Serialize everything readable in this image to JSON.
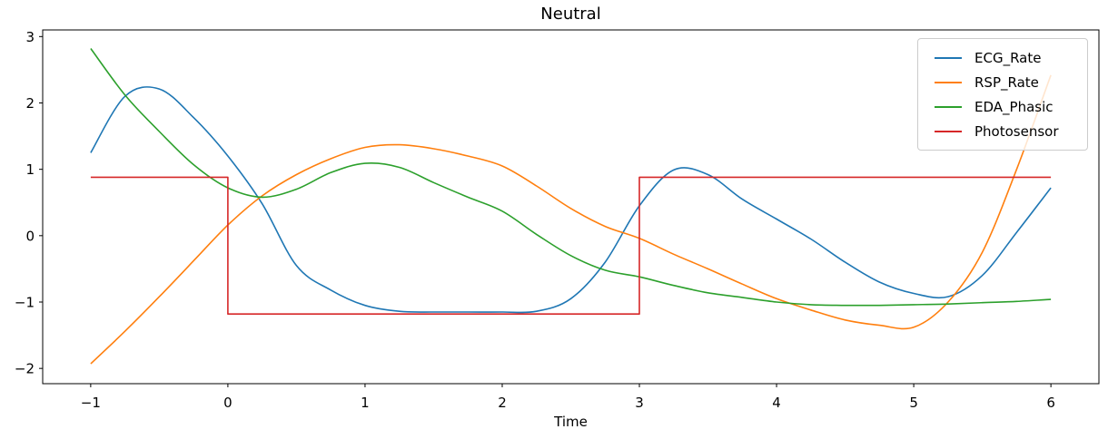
{
  "chart_data": {
    "type": "line",
    "title": "Neutral",
    "xlabel": "Time",
    "ylabel": "",
    "xlim": [
      -1.35,
      6.35
    ],
    "ylim": [
      -2.23,
      3.1
    ],
    "xticks": [
      -1,
      0,
      1,
      2,
      3,
      4,
      5,
      6
    ],
    "yticks": [
      -2,
      -1,
      0,
      1,
      2,
      3
    ],
    "grid": false,
    "legend_position": "upper right",
    "axis_color": "#000000",
    "x": [
      -1,
      -0.75,
      -0.5,
      -0.25,
      0,
      0.25,
      0.5,
      0.75,
      1,
      1.25,
      1.5,
      1.75,
      2,
      2.25,
      2.5,
      2.75,
      3,
      3.25,
      3.5,
      3.75,
      4,
      4.25,
      4.5,
      4.75,
      5,
      5.25,
      5.5,
      5.75,
      6
    ],
    "series": [
      {
        "name": "ECG_Rate",
        "color": "#1f77b4",
        "smooth": true,
        "values": [
          1.25,
          2.1,
          2.21,
          1.78,
          1.2,
          0.48,
          -0.45,
          -0.82,
          -1.05,
          -1.14,
          -1.15,
          -1.15,
          -1.15,
          -1.14,
          -0.95,
          -0.4,
          0.45,
          0.99,
          0.92,
          0.55,
          0.25,
          -0.05,
          -0.4,
          -0.7,
          -0.87,
          -0.92,
          -0.6,
          0.05,
          0.72
        ]
      },
      {
        "name": "RSP_Rate",
        "color": "#ff7f0e",
        "smooth": true,
        "values": [
          -1.93,
          -1.44,
          -0.92,
          -0.38,
          0.16,
          0.6,
          0.92,
          1.16,
          1.33,
          1.37,
          1.31,
          1.2,
          1.05,
          0.75,
          0.41,
          0.14,
          -0.04,
          -0.28,
          -0.5,
          -0.73,
          -0.95,
          -1.12,
          -1.27,
          -1.35,
          -1.38,
          -1.0,
          -0.25,
          1.0,
          2.42
        ]
      },
      {
        "name": "EDA_Phasic",
        "color": "#2ca02c",
        "smooth": true,
        "values": [
          2.82,
          2.12,
          1.57,
          1.07,
          0.72,
          0.58,
          0.7,
          0.95,
          1.09,
          1.03,
          0.8,
          0.58,
          0.37,
          0.02,
          -0.3,
          -0.52,
          -0.62,
          -0.75,
          -0.86,
          -0.93,
          -1.0,
          -1.04,
          -1.05,
          -1.05,
          -1.04,
          -1.03,
          -1.01,
          -0.99,
          -0.96
        ]
      },
      {
        "name": "Photosensor",
        "color": "#d62728",
        "smooth": false,
        "x": [
          -1,
          0,
          0,
          3,
          3,
          6
        ],
        "values": [
          0.88,
          0.88,
          -1.18,
          -1.18,
          0.88,
          0.88
        ]
      }
    ]
  }
}
